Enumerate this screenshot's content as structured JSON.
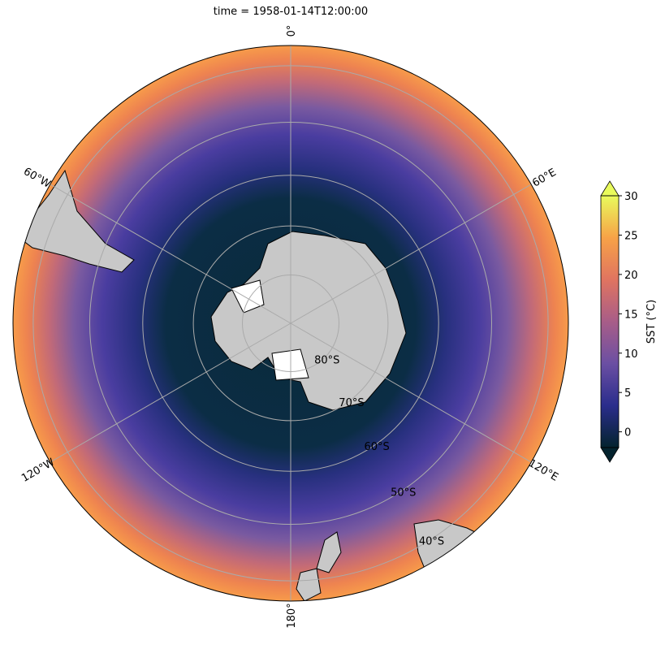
{
  "title": "time = 1958-01-14T12:00:00",
  "meridians": [
    {
      "value": 0,
      "label": "0°"
    },
    {
      "value": 60,
      "label": "60°E"
    },
    {
      "value": 120,
      "label": "120°E"
    },
    {
      "value": 180,
      "label": "180°"
    },
    {
      "value": -120,
      "label": "120°W"
    },
    {
      "value": -60,
      "label": "60°W"
    }
  ],
  "parallels": [
    {
      "value": -80,
      "label": "80°S"
    },
    {
      "value": -70,
      "label": "70°S"
    },
    {
      "value": -60,
      "label": "60°S"
    },
    {
      "value": -50,
      "label": "50°S"
    },
    {
      "value": -40,
      "label": "40°S"
    }
  ],
  "colorbar": {
    "label": "SST (°C)",
    "lim": [
      -2,
      30
    ],
    "ticks": [
      0,
      5,
      10,
      15,
      20,
      25,
      30
    ],
    "colors": [
      "#04232e",
      "#2a2d8c",
      "#6b4fa3",
      "#a85d88",
      "#e07460",
      "#f7a247",
      "#e9fb5c"
    ]
  }
}
